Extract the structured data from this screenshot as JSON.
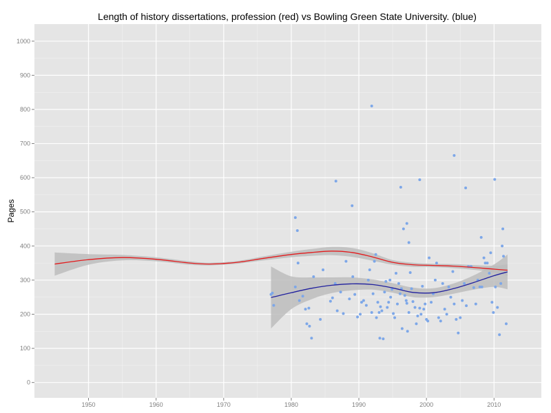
{
  "chart_data": {
    "type": "scatter",
    "title": "Length of history dissertations, profession (red) vs Bowling Green State University. (blue)",
    "xlabel": "",
    "ylabel": "Pages",
    "xlim": [
      1942,
      2017
    ],
    "ylim": [
      -45,
      1050
    ],
    "x_ticks": [
      1950,
      1960,
      1970,
      1980,
      1990,
      2000,
      2010
    ],
    "y_ticks": [
      0,
      100,
      200,
      300,
      400,
      500,
      600,
      700,
      800,
      900,
      1000
    ],
    "grid": true,
    "legend": "none",
    "colors": {
      "panel_background": "#e5e5e5",
      "grid_major": "#ffffff",
      "grid_minor": "#f2f2f2",
      "points": "#7da7e8",
      "profession_line": "#e31a1c",
      "bgsu_line": "#1f1f9e",
      "confidence_band": "#bdbdbd"
    },
    "profession_smooth": {
      "x": [
        1945,
        1950,
        1955,
        1960,
        1965,
        1968,
        1972,
        1976,
        1980,
        1983,
        1986,
        1989,
        1992,
        1995,
        1998,
        2001,
        2004,
        2007,
        2010,
        2012
      ],
      "y": [
        347,
        360,
        366,
        361,
        350,
        347,
        352,
        364,
        375,
        381,
        385,
        381,
        368,
        352,
        345,
        343,
        341,
        337,
        332,
        329
      ],
      "lower": [
        313,
        345,
        358,
        355,
        345,
        343,
        348,
        358,
        367,
        371,
        373,
        368,
        357,
        345,
        339,
        338,
        335,
        330,
        322,
        312
      ],
      "upper": [
        381,
        376,
        374,
        367,
        355,
        351,
        356,
        370,
        383,
        391,
        397,
        394,
        379,
        359,
        351,
        348,
        347,
        344,
        342,
        346
      ]
    },
    "bgsu_smooth": {
      "x": [
        1977,
        1980,
        1983,
        1986,
        1989,
        1992,
        1995,
        1998,
        2001,
        2004,
        2007,
        2010,
        2012
      ],
      "y": [
        249,
        263,
        276,
        285,
        289,
        287,
        277,
        264,
        263,
        275,
        293,
        313,
        324
      ],
      "lower": [
        158,
        215,
        244,
        262,
        270,
        272,
        263,
        250,
        250,
        260,
        272,
        280,
        273
      ],
      "upper": [
        340,
        311,
        308,
        308,
        308,
        302,
        291,
        278,
        276,
        290,
        314,
        346,
        375
      ]
    },
    "points": {
      "x": [
        1977,
        1977.2,
        1977.4,
        1980.6,
        1980.9,
        1981.2,
        1981.7,
        1982.1,
        1982.3,
        1982.6,
        1983,
        1983.3,
        1984.3,
        1984.7,
        1985.8,
        1986.1,
        1986.5,
        1986.8,
        1987.3,
        1987.7,
        1988.1,
        1988.6,
        1989.1,
        1989.4,
        1989.8,
        1990.2,
        1990.4,
        1990.7,
        1991.1,
        1991.4,
        1991.6,
        1991.9,
        1992.1,
        1992.3,
        1992.5,
        1992.6,
        1992.8,
        1993,
        1993.2,
        1993.4,
        1993.6,
        1993.8,
        1994,
        1994.2,
        1994.4,
        1994.6,
        1994.7,
        1994.9,
        1995.1,
        1995.3,
        1995.5,
        1995.7,
        1995.9,
        1996.1,
        1996.3,
        1996.4,
        1996.6,
        1996.8,
        1997,
        1997.1,
        1997.2,
        1997.4,
        1997.6,
        1997.8,
        1998,
        1998.3,
        1998.5,
        1998.7,
        1999,
        1999.2,
        1999.4,
        1999.6,
        1999.8,
        2000,
        2000.2,
        2000.4,
        2000.7,
        2001,
        2001.3,
        2001.5,
        2001.8,
        2002.1,
        2002.4,
        2002.7,
        2003,
        2003.3,
        2003.6,
        2003.9,
        2004.1,
        2004.4,
        2004.7,
        2005,
        2005.3,
        2005.6,
        2005.9,
        2006.2,
        2006.6,
        2007,
        2007.3,
        2007.6,
        2007.9,
        2008.2,
        2008.5,
        2008.7,
        2009,
        2009.3,
        2009.5,
        2009.7,
        2009.9,
        2010.2,
        2010.5,
        2010.8,
        2011,
        2011.2,
        2011.4,
        2011.8,
        1991.9,
        1986.6,
        1989,
        1996.2,
        1999,
        2004.1,
        2005.8,
        2010.1,
        1980.6,
        1981,
        2008.1,
        1997.1,
        1997.4,
        1993.1,
        1982.7,
        2011.3
      ],
      "y": [
        258,
        262,
        226,
        280,
        445,
        240,
        253,
        215,
        172,
        218,
        130,
        310,
        185,
        330,
        238,
        248,
        290,
        210,
        265,
        202,
        355,
        245,
        310,
        258,
        192,
        200,
        235,
        240,
        226,
        300,
        330,
        205,
        260,
        355,
        375,
        190,
        235,
        205,
        222,
        210,
        128,
        265,
        296,
        220,
        235,
        300,
        250,
        273,
        202,
        190,
        320,
        230,
        290,
        260,
        275,
        158,
        450,
        255,
        240,
        232,
        150,
        205,
        322,
        275,
        237,
        220,
        172,
        195,
        218,
        200,
        282,
        215,
        230,
        185,
        180,
        365,
        235,
        260,
        300,
        350,
        190,
        180,
        290,
        215,
        200,
        280,
        250,
        325,
        230,
        185,
        145,
        190,
        240,
        290,
        225,
        340,
        340,
        278,
        230,
        300,
        280,
        280,
        365,
        350,
        350,
        320,
        380,
        235,
        205,
        280,
        220,
        140,
        290,
        400,
        370,
        172,
        810,
        590,
        518,
        572,
        594,
        665,
        570,
        595,
        483,
        350,
        425,
        466,
        410,
        130,
        165,
        450
      ]
    }
  }
}
